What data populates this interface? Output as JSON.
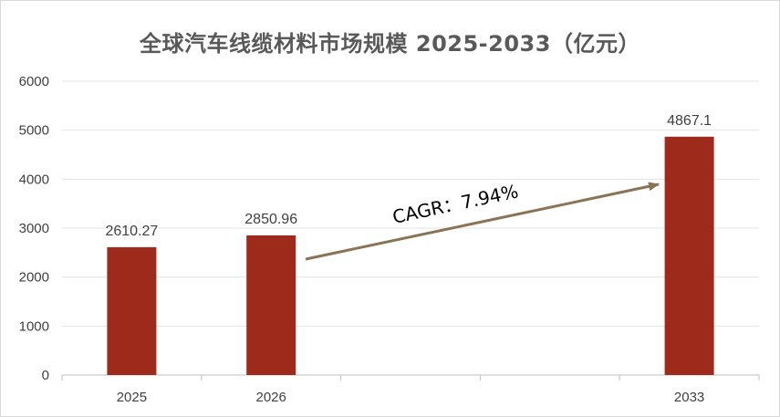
{
  "chart_data": {
    "type": "bar",
    "title": "全球汽车线缆材料市场规模 2025-2033（亿元）",
    "categories": [
      "2025",
      "2026",
      "",
      "",
      "2033"
    ],
    "values": [
      2610.27,
      2850.96,
      null,
      null,
      4867.1
    ],
    "data_labels": [
      "2610.27",
      "2850.96",
      "",
      "",
      "4867.1"
    ],
    "y_ticks": [
      "0",
      "1000",
      "2000",
      "3000",
      "4000",
      "5000",
      "6000"
    ],
    "ylim": [
      0,
      6000
    ],
    "grid": true,
    "bar_color": "#9e2a1c",
    "annotation": {
      "text": "CAGR：7.94%",
      "from_category": "2026",
      "to_category": "2033",
      "arrow_color": "#8b7355"
    }
  }
}
